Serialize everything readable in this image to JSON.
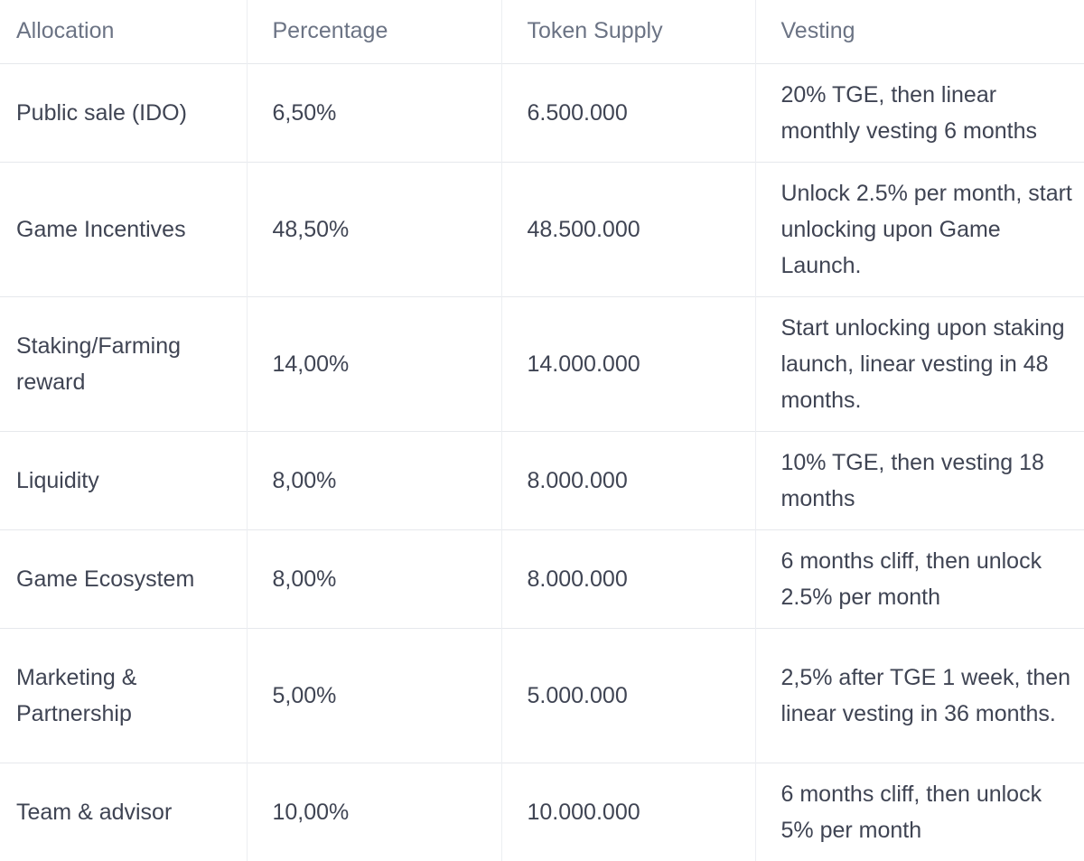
{
  "table": {
    "headers": {
      "allocation": "Allocation",
      "percentage": "Percentage",
      "token_supply": "Token Supply",
      "vesting": "Vesting"
    },
    "rows": [
      {
        "allocation": "Public sale (IDO)",
        "percentage": "6,50%",
        "token_supply": "6.500.000",
        "vesting": "20% TGE, then linear monthly vesting 6 months"
      },
      {
        "allocation": "Game Incentives",
        "percentage": "48,50%",
        "token_supply": "48.500.000",
        "vesting": "Unlock 2.5% per month, start unlocking upon Game Launch."
      },
      {
        "allocation": "Staking/Farming reward",
        "percentage": "14,00%",
        "token_supply": "14.000.000",
        "vesting": "Start unlocking upon staking launch, linear vesting in 48 months."
      },
      {
        "allocation": "Liquidity",
        "percentage": "8,00%",
        "token_supply": "8.000.000",
        "vesting": "10% TGE, then vesting 18 months"
      },
      {
        "allocation": "Game Ecosystem",
        "percentage": "8,00%",
        "token_supply": "8.000.000",
        "vesting": "6 months cliff, then unlock 2.5% per month"
      },
      {
        "allocation": "Marketing & Partnership",
        "percentage": "5,00%",
        "token_supply": "5.000.000",
        "vesting": "2,5% after TGE 1 week, then linear vesting in 36 months."
      },
      {
        "allocation": "Team & advisor",
        "percentage": "10,00%",
        "token_supply": "10.000.000",
        "vesting": "6 months cliff, then unlock 5% per month"
      }
    ]
  }
}
